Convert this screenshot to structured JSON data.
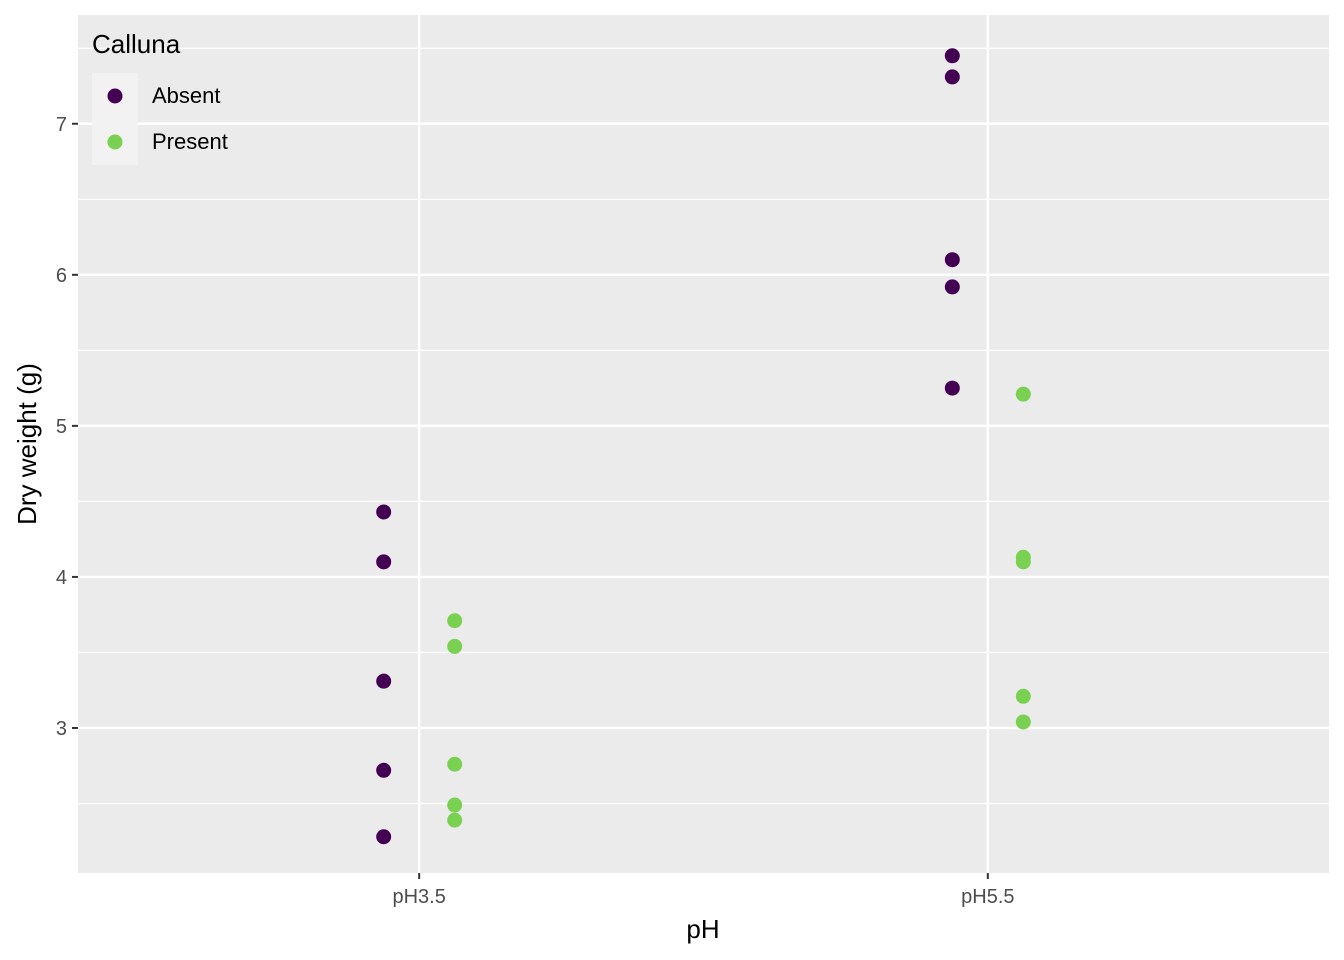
{
  "chart_data": {
    "type": "scatter",
    "xlabel": "pH",
    "ylabel": "Dry weight (g)",
    "categories": [
      "pH3.5",
      "pH5.5"
    ],
    "yticks": [
      3,
      4,
      5,
      6,
      7
    ],
    "ylim": [
      2.04,
      7.72
    ],
    "grid": true,
    "legend": {
      "title": "Calluna",
      "position": "top-left-inside",
      "items": [
        {
          "label": "Absent",
          "color": "#440154"
        },
        {
          "label": "Present",
          "color": "#7AD151"
        }
      ]
    },
    "series": [
      {
        "name": "Absent",
        "color": "#440154",
        "points": [
          {
            "x": "pH3.5",
            "y": 4.43
          },
          {
            "x": "pH3.5",
            "y": 4.1
          },
          {
            "x": "pH3.5",
            "y": 3.31
          },
          {
            "x": "pH3.5",
            "y": 2.72
          },
          {
            "x": "pH3.5",
            "y": 2.28
          },
          {
            "x": "pH5.5",
            "y": 7.45
          },
          {
            "x": "pH5.5",
            "y": 7.31
          },
          {
            "x": "pH5.5",
            "y": 6.1
          },
          {
            "x": "pH5.5",
            "y": 5.92
          },
          {
            "x": "pH5.5",
            "y": 5.25
          }
        ]
      },
      {
        "name": "Present",
        "color": "#7AD151",
        "points": [
          {
            "x": "pH3.5",
            "y": 3.71
          },
          {
            "x": "pH3.5",
            "y": 3.54
          },
          {
            "x": "pH3.5",
            "y": 2.76
          },
          {
            "x": "pH3.5",
            "y": 2.49
          },
          {
            "x": "pH3.5",
            "y": 2.39
          },
          {
            "x": "pH5.5",
            "y": 5.21
          },
          {
            "x": "pH5.5",
            "y": 4.13
          },
          {
            "x": "pH5.5",
            "y": 4.1
          },
          {
            "x": "pH5.5",
            "y": 3.21
          },
          {
            "x": "pH5.5",
            "y": 3.04
          }
        ]
      }
    ]
  }
}
